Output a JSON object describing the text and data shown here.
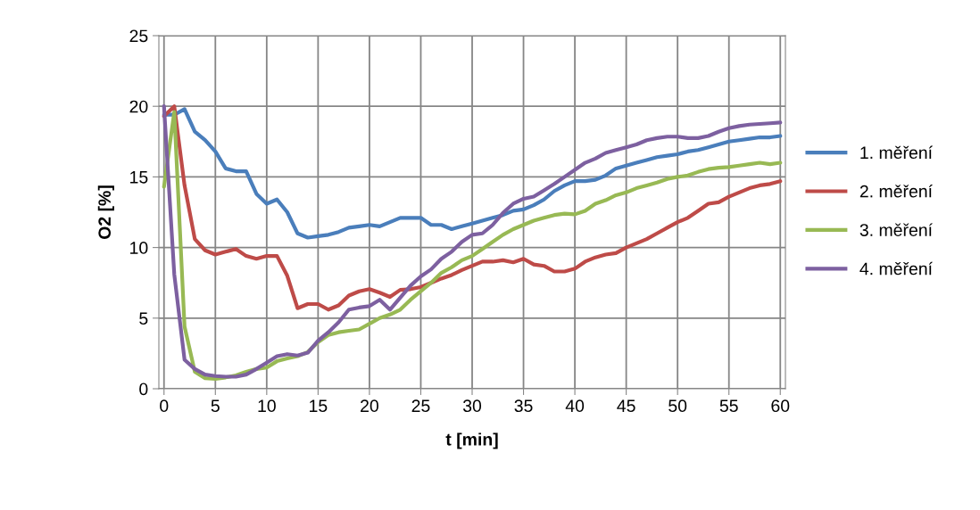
{
  "chart_data": {
    "type": "line",
    "xlabel": "t [min]",
    "ylabel": "O2 [%]",
    "x": [
      0,
      1,
      2,
      3,
      4,
      5,
      6,
      7,
      8,
      9,
      10,
      11,
      12,
      13,
      14,
      15,
      16,
      17,
      18,
      19,
      20,
      21,
      22,
      23,
      24,
      25,
      26,
      27,
      28,
      29,
      30,
      31,
      32,
      33,
      34,
      35,
      36,
      37,
      38,
      39,
      40,
      41,
      42,
      43,
      44,
      45,
      46,
      47,
      48,
      49,
      50,
      51,
      52,
      53,
      54,
      55,
      56,
      57,
      58,
      59,
      60
    ],
    "xlim": [
      -0.5,
      60.5
    ],
    "xticks": [
      0,
      5,
      10,
      15,
      20,
      25,
      30,
      35,
      40,
      45,
      50,
      55,
      60
    ],
    "ylim": [
      0,
      25
    ],
    "yticks": [
      0,
      5,
      10,
      15,
      20,
      25
    ],
    "grid": true,
    "legend": "right",
    "marker": "none",
    "line_style": "solid",
    "series": [
      {
        "name": "1. měření",
        "color": "#4a7ebb",
        "values": [
          19.4,
          19.4,
          19.8,
          18.2,
          17.6,
          16.8,
          15.6,
          15.4,
          15.4,
          13.8,
          13.1,
          13.4,
          12.5,
          11.0,
          10.7,
          10.8,
          10.9,
          11.1,
          11.4,
          11.5,
          11.6,
          11.5,
          11.8,
          12.1,
          12.1,
          12.1,
          11.6,
          11.6,
          11.3,
          11.5,
          11.7,
          11.9,
          12.1,
          12.3,
          12.6,
          12.7,
          13.0,
          13.4,
          14.0,
          14.4,
          14.7,
          14.7,
          14.8,
          15.1,
          15.6,
          15.8,
          16.0,
          16.2,
          16.4,
          16.5,
          16.6,
          16.8,
          16.9,
          17.1,
          17.3,
          17.5,
          17.6,
          17.7,
          17.8,
          17.8,
          17.9
        ]
      },
      {
        "name": "2. měření",
        "color": "#be4b48",
        "values": [
          19.3,
          20.0,
          14.4,
          10.6,
          9.8,
          9.5,
          9.7,
          9.9,
          9.4,
          9.2,
          9.4,
          9.4,
          8.0,
          5.7,
          6.0,
          6.0,
          5.6,
          5.9,
          6.6,
          6.9,
          7.05,
          6.8,
          6.5,
          7.0,
          7.05,
          7.2,
          7.5,
          7.8,
          8.05,
          8.4,
          8.7,
          9.0,
          9.0,
          9.1,
          8.95,
          9.2,
          8.8,
          8.7,
          8.3,
          8.3,
          8.5,
          9.0,
          9.3,
          9.5,
          9.6,
          10.0,
          10.3,
          10.6,
          11.0,
          11.4,
          11.8,
          12.1,
          12.6,
          13.1,
          13.2,
          13.6,
          13.9,
          14.2,
          14.4,
          14.5,
          14.7
        ]
      },
      {
        "name": "3. měření",
        "color": "#98b954",
        "values": [
          14.3,
          19.6,
          4.4,
          1.2,
          0.75,
          0.7,
          0.8,
          0.95,
          1.2,
          1.4,
          1.5,
          1.95,
          2.15,
          2.3,
          2.6,
          3.3,
          3.8,
          4.0,
          4.1,
          4.2,
          4.6,
          5.0,
          5.25,
          5.6,
          6.3,
          6.9,
          7.5,
          8.2,
          8.6,
          9.1,
          9.4,
          9.9,
          10.4,
          10.9,
          11.3,
          11.6,
          11.9,
          12.1,
          12.3,
          12.4,
          12.35,
          12.6,
          13.1,
          13.35,
          13.7,
          13.9,
          14.2,
          14.4,
          14.6,
          14.85,
          15.0,
          15.1,
          15.35,
          15.55,
          15.65,
          15.7,
          15.8,
          15.9,
          16.0,
          15.9,
          16.0
        ]
      },
      {
        "name": "4. měření",
        "color": "#7d60a0",
        "values": [
          20.0,
          8.1,
          2.05,
          1.4,
          1.0,
          0.9,
          0.85,
          0.85,
          1.0,
          1.4,
          1.85,
          2.3,
          2.45,
          2.35,
          2.55,
          3.4,
          4.0,
          4.7,
          5.6,
          5.75,
          5.85,
          6.3,
          5.6,
          6.45,
          7.3,
          7.95,
          8.45,
          9.2,
          9.7,
          10.4,
          10.9,
          11.0,
          11.6,
          12.45,
          13.1,
          13.45,
          13.6,
          14.05,
          14.5,
          15.0,
          15.5,
          16.0,
          16.3,
          16.7,
          16.9,
          17.1,
          17.3,
          17.6,
          17.75,
          17.85,
          17.85,
          17.75,
          17.75,
          17.9,
          18.2,
          18.45,
          18.6,
          18.7,
          18.75,
          18.8,
          18.85
        ]
      }
    ]
  }
}
